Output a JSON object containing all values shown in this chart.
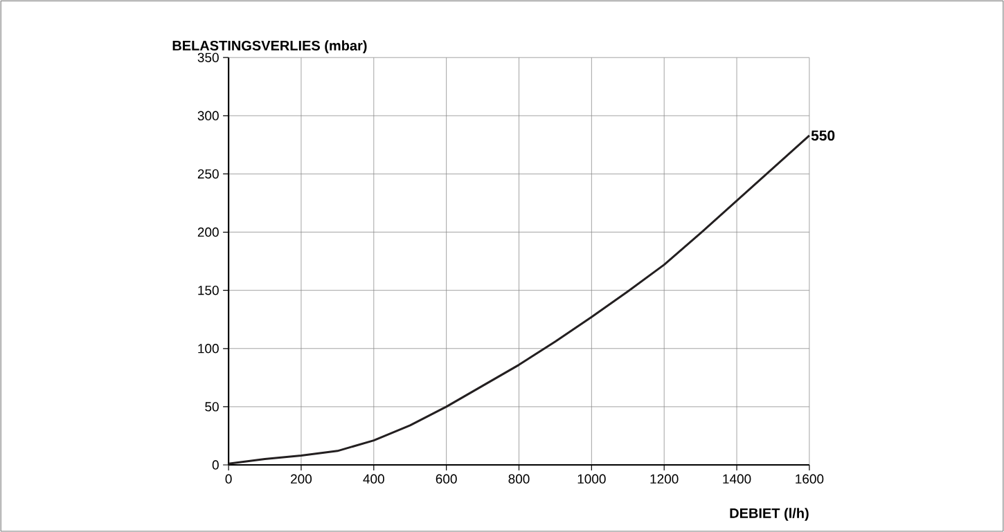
{
  "chart_data": {
    "type": "line",
    "xlabel": "DEBIET (l/h)",
    "ylabel": "BELASTINGSVERLIES (mbar)",
    "x": [
      0,
      100,
      200,
      300,
      400,
      500,
      600,
      700,
      800,
      900,
      1000,
      1100,
      1200,
      1300,
      1400,
      1500,
      1600
    ],
    "series": [
      {
        "name": "550",
        "color": "#231f20",
        "values": [
          1,
          5,
          8,
          12,
          21,
          34,
          50,
          68,
          86,
          106,
          127,
          149,
          172,
          199,
          227,
          255,
          283
        ]
      }
    ],
    "xlim": [
      0,
      1600
    ],
    "xticks": [
      0,
      200,
      400,
      600,
      800,
      1000,
      1200,
      1400,
      1600
    ],
    "ylim": [
      0,
      350
    ],
    "yticks": [
      0,
      50,
      100,
      150,
      200,
      250,
      300,
      350
    ],
    "grid": true,
    "line_style": "solid",
    "marker": "none"
  }
}
